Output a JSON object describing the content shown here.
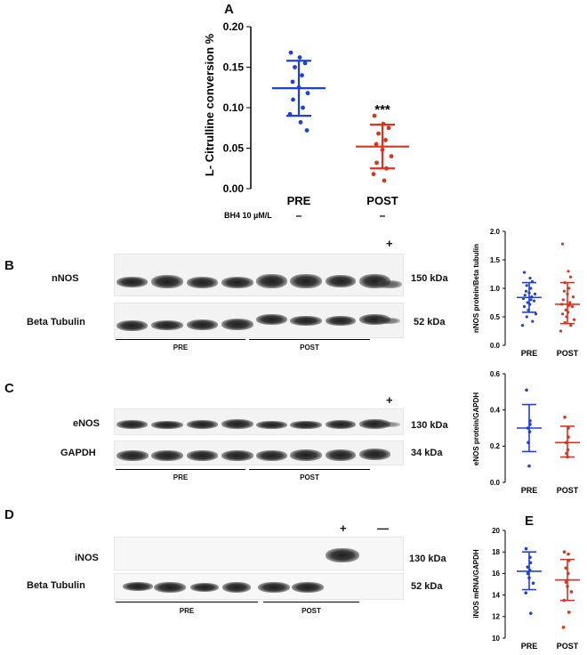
{
  "panels": {
    "a": {
      "letter": "A",
      "ylabel": "L- Citrulline conversion  %",
      "yticks": [
        "0.00",
        "0.05",
        "0.10",
        "0.15",
        "0.20"
      ],
      "categories": [
        "PRE",
        "POST"
      ],
      "significance": "***",
      "treatment_label": "BH4 10 µM/L",
      "treatment_values": [
        "–",
        "–"
      ]
    },
    "b": {
      "letter": "B",
      "rows": [
        {
          "label": "nNOS",
          "size": "150 kDa"
        },
        {
          "label": "Beta Tubulin",
          "size": "52 kDa"
        }
      ],
      "control": "+",
      "groups": [
        "PRE",
        "POST"
      ],
      "ylabel": "nNOS protein/Beta tubulin",
      "yticks": [
        "0.0",
        "0.5",
        "1.0",
        "1.5",
        "2.0"
      ],
      "categories": [
        "PRE",
        "POST"
      ]
    },
    "c": {
      "letter": "C",
      "rows": [
        {
          "label": "eNOS",
          "size": "130 kDa"
        },
        {
          "label": "GAPDH",
          "size": "34 kDa"
        }
      ],
      "control": "+",
      "groups": [
        "PRE",
        "POST"
      ],
      "ylabel": "eNOS protein/GAPDH",
      "yticks": [
        "0.0",
        "0.2",
        "0.4",
        "0.6"
      ],
      "categories": [
        "PRE",
        "POST"
      ]
    },
    "d": {
      "letter": "D",
      "rows": [
        {
          "label": "iNOS",
          "size": "130 kDa"
        },
        {
          "label": "Beta Tubulin",
          "size": "52 kDa"
        }
      ],
      "control_pos": "+",
      "control_neg": "—",
      "groups": [
        "PRE",
        "POST"
      ]
    },
    "e": {
      "letter": "E",
      "ylabel": "iNOS mRNA/GAPDH",
      "yticks": [
        "10",
        "12",
        "14",
        "16",
        "18",
        "20"
      ],
      "categories": [
        "PRE",
        "POST"
      ]
    }
  },
  "colors": {
    "pre": "#1f3fd8",
    "post": "#e0301e"
  },
  "chart_data": [
    {
      "id": "A",
      "type": "scatter",
      "categories": [
        "PRE",
        "POST"
      ],
      "ylim": [
        0,
        0.2
      ],
      "series": [
        {
          "mean": 0.124,
          "sd_low": 0.09,
          "sd_high": 0.158,
          "values": [
            0.168,
            0.162,
            0.155,
            0.15,
            0.14,
            0.132,
            0.125,
            0.118,
            0.11,
            0.1,
            0.092,
            0.082,
            0.072
          ]
        },
        {
          "mean": 0.052,
          "sd_low": 0.025,
          "sd_high": 0.079,
          "values": [
            0.09,
            0.08,
            0.075,
            0.068,
            0.06,
            0.055,
            0.048,
            0.04,
            0.032,
            0.025,
            0.018,
            0.01
          ]
        }
      ]
    },
    {
      "id": "B",
      "type": "scatter",
      "categories": [
        "PRE",
        "POST"
      ],
      "ylim": [
        0,
        2
      ],
      "series": [
        {
          "mean": 0.84,
          "sd_low": 0.58,
          "sd_high": 1.1,
          "values": [
            1.28,
            1.18,
            1.12,
            1.05,
            1.0,
            0.95,
            0.92,
            0.9,
            0.88,
            0.85,
            0.82,
            0.8,
            0.78,
            0.75,
            0.72,
            0.68,
            0.62,
            0.55,
            0.5,
            0.42,
            0.35
          ]
        },
        {
          "mean": 0.72,
          "sd_low": 0.38,
          "sd_high": 1.1,
          "values": [
            1.78,
            1.3,
            1.2,
            1.1,
            1.0,
            0.95,
            0.9,
            0.85,
            0.8,
            0.75,
            0.72,
            0.7,
            0.68,
            0.62,
            0.58,
            0.55,
            0.5,
            0.45,
            0.4,
            0.35,
            0.25
          ]
        }
      ]
    },
    {
      "id": "C",
      "type": "scatter",
      "categories": [
        "PRE",
        "POST"
      ],
      "ylim": [
        0,
        0.6
      ],
      "series": [
        {
          "mean": 0.3,
          "sd_low": 0.17,
          "sd_high": 0.43,
          "values": [
            0.51,
            0.34,
            0.32,
            0.3,
            0.28,
            0.22,
            0.09
          ]
        },
        {
          "mean": 0.22,
          "sd_low": 0.14,
          "sd_high": 0.31,
          "values": [
            0.36,
            0.3,
            0.25,
            0.22,
            0.18,
            0.16,
            0.14
          ]
        }
      ]
    },
    {
      "id": "E",
      "type": "scatter",
      "categories": [
        "PRE",
        "POST"
      ],
      "ylim": [
        10,
        20
      ],
      "series": [
        {
          "mean": 16.2,
          "sd_low": 14.5,
          "sd_high": 18.0,
          "values": [
            18.3,
            17.5,
            17.0,
            16.6,
            16.3,
            16.0,
            15.6,
            15.1,
            14.2,
            12.3
          ]
        },
        {
          "mean": 15.4,
          "sd_low": 13.5,
          "sd_high": 17.3,
          "values": [
            18.0,
            17.8,
            17.2,
            16.5,
            16.0,
            15.2,
            14.8,
            14.3,
            13.5,
            12.4,
            11.0
          ]
        }
      ]
    }
  ]
}
